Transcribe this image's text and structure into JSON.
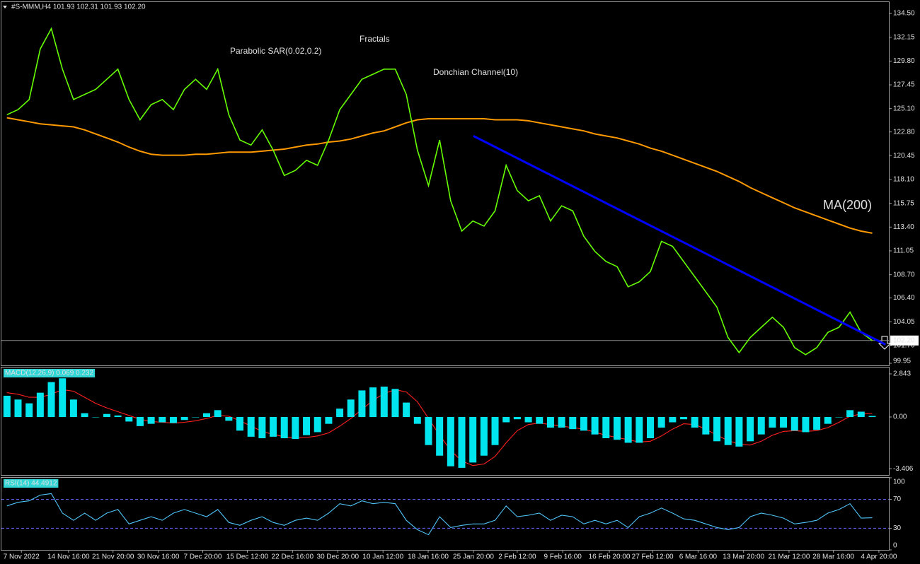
{
  "chart_data": [
    {
      "type": "line",
      "title": "#S-MMM,H4 101.93 102.31 101.93 102.20",
      "series": [
        {
          "color": "#66ff00",
          "values": [
            124.5,
            125,
            126,
            131,
            133,
            129,
            126,
            126.5,
            127,
            128,
            129,
            126,
            124,
            125.5,
            126,
            125,
            127,
            128,
            127,
            129,
            124.5,
            122,
            121.5,
            123,
            121,
            118.5,
            119,
            120,
            119.5,
            122,
            125,
            126.5,
            128,
            128.5,
            129,
            129,
            126.5,
            121,
            117.5,
            122,
            116,
            113,
            114,
            113.5,
            115,
            119.5,
            117,
            116,
            116.5,
            114,
            115.5,
            115,
            112.5,
            111,
            110,
            109.5,
            107.5,
            108,
            109,
            112,
            111.5,
            110,
            108.5,
            107,
            105.5,
            102.5,
            101,
            102.5,
            103.5,
            104.5,
            103.5,
            101.5,
            100.8,
            101.5,
            103,
            103.5,
            105,
            103,
            102.2
          ]
        },
        {
          "name": "MA(200)",
          "color": "#ff9900",
          "values": [
            124.2,
            124.0,
            123.8,
            123.6,
            123.5,
            123.4,
            123.3,
            123.0,
            122.6,
            122.2,
            121.8,
            121.3,
            120.9,
            120.6,
            120.5,
            120.5,
            120.5,
            120.6,
            120.6,
            120.7,
            120.8,
            120.8,
            120.8,
            120.9,
            121.0,
            121.1,
            121.3,
            121.5,
            121.6,
            121.8,
            121.9,
            122.1,
            122.4,
            122.7,
            122.9,
            123.3,
            123.7,
            124.0,
            124.1,
            124.1,
            124.1,
            124.1,
            124.1,
            124.1,
            124.0,
            124.0,
            124.0,
            123.9,
            123.7,
            123.5,
            123.3,
            123.1,
            122.9,
            122.6,
            122.4,
            122.2,
            121.9,
            121.6,
            121.2,
            120.9,
            120.5,
            120.1,
            119.7,
            119.3,
            118.9,
            118.4,
            117.9,
            117.3,
            116.8,
            116.3,
            115.8,
            115.3,
            114.9,
            114.5,
            114.1,
            113.7,
            113.3,
            113.0,
            112.8
          ]
        }
      ],
      "trendline": {
        "color": "#0000ff",
        "x": [
          42.05,
          79.2
        ],
        "values": [
          122.4,
          101.8
        ]
      },
      "annotations": [
        "Parabolic SAR(0.02,0.2)",
        "Fractals",
        "Donchian Channel(10)"
      ],
      "last_price": {
        "value": 102.2,
        "label": "102.20"
      },
      "xlim": [
        -0.5,
        79.5
      ],
      "ylim": [
        99.74,
        135.62
      ],
      "yticks": [
        {
          "value": 134.5,
          "label": "134.50"
        },
        132.15,
        {
          "value": 129.8,
          "label": "129.80"
        },
        127.45,
        {
          "value": 125.1,
          "label": "125.10"
        },
        {
          "value": 122.8,
          "label": "122.80"
        },
        120.45,
        {
          "value": 118.1,
          "label": "118.10"
        },
        115.75,
        {
          "value": 113.4,
          "label": "113.40"
        },
        111.05,
        {
          "value": 108.7,
          "label": "108.70"
        },
        {
          "value": 106.4,
          "label": "106.40"
        },
        104.05,
        {
          "value": 101.7,
          "label": "101.70"
        },
        99.95
      ]
    },
    {
      "type": "bar",
      "title": "MACD(12,26,9) 0.069 0.232",
      "series": [
        {
          "type": "bar",
          "color": "#00e5ee",
          "values": [
            1.4,
            1.15,
            0.9,
            1.6,
            2.3,
            2.55,
            1.15,
            0.25,
            0,
            0.2,
            0.1,
            -0.3,
            -0.6,
            -0.45,
            -0.35,
            -0.4,
            -0.2,
            0,
            0.25,
            0.45,
            -0.25,
            -0.9,
            -1.3,
            -1.4,
            -1.3,
            -1.4,
            -1.45,
            -1.2,
            -1.0,
            -0.45,
            0.55,
            1.15,
            1.75,
            1.95,
            2.0,
            1.85,
            0.95,
            -0.45,
            -1.85,
            -2.55,
            -3.25,
            -3.35,
            -3.0,
            -2.55,
            -1.85,
            -0.35,
            -0.15,
            -0.35,
            -0.45,
            -0.7,
            -0.7,
            -0.8,
            -0.9,
            -1.15,
            -1.4,
            -1.5,
            -1.7,
            -1.7,
            -1.4,
            -0.7,
            -0.35,
            -0.15,
            -0.7,
            -1.15,
            -1.6,
            -1.85,
            -1.95,
            -1.6,
            -1.15,
            -0.7,
            -0.7,
            -0.9,
            -1.0,
            -0.85,
            -0.45,
            0,
            0.45,
            0.35,
            0.069
          ]
        },
        {
          "type": "line",
          "color": "#ff2020",
          "values": [
            1.6,
            1.5,
            1.3,
            1.3,
            1.5,
            1.8,
            1.7,
            1.3,
            0.9,
            0.6,
            0.35,
            0.1,
            -0.15,
            -0.3,
            -0.35,
            -0.4,
            -0.35,
            -0.25,
            -0.1,
            0.1,
            0.05,
            -0.25,
            -0.6,
            -0.95,
            -1.15,
            -1.3,
            -1.4,
            -1.35,
            -1.25,
            -1.05,
            -0.6,
            -0.1,
            0.5,
            1.1,
            1.55,
            1.8,
            1.65,
            1.0,
            -0.1,
            -1.2,
            -2.2,
            -2.9,
            -3.2,
            -3.1,
            -2.6,
            -1.7,
            -0.9,
            -0.5,
            -0.4,
            -0.5,
            -0.6,
            -0.7,
            -0.8,
            -1.0,
            -1.2,
            -1.35,
            -1.5,
            -1.65,
            -1.6,
            -1.25,
            -0.8,
            -0.45,
            -0.5,
            -0.8,
            -1.2,
            -1.55,
            -1.8,
            -1.85,
            -1.6,
            -1.2,
            -0.95,
            -0.9,
            -0.95,
            -0.9,
            -0.7,
            -0.35,
            0.05,
            0.2,
            0.232
          ]
        }
      ],
      "xlim": [
        -0.5,
        79.5
      ],
      "ylim": [
        -3.82,
        3.26
      ],
      "yticks": [
        2.843,
        {
          "value": 0,
          "label": "0.00"
        },
        -3.406
      ]
    },
    {
      "type": "line",
      "title": "RSI(14) 44.4912",
      "series": [
        {
          "color": "#4fc3f7",
          "values": [
            61,
            66,
            68,
            76,
            78,
            51,
            41,
            51,
            41,
            51,
            56,
            36,
            41,
            46,
            41,
            51,
            56,
            51,
            46,
            56,
            38,
            34,
            41,
            46,
            38,
            34,
            41,
            44,
            41,
            51,
            64,
            61,
            68,
            64,
            66,
            64,
            41,
            28,
            21,
            46,
            31,
            34,
            36,
            36,
            41,
            61,
            46,
            48,
            51,
            41,
            48,
            46,
            36,
            41,
            36,
            41,
            31,
            46,
            51,
            58,
            51,
            43,
            41,
            36,
            31,
            28,
            31,
            46,
            51,
            48,
            44,
            36,
            38,
            41,
            51,
            56,
            64,
            44,
            44.4912
          ]
        }
      ],
      "levels": [
        70,
        30
      ],
      "xlim": [
        -0.5,
        79.5
      ],
      "ylim": [
        0,
        100
      ],
      "yticks": [
        100,
        70,
        30,
        0
      ],
      "xticks": [
        {
          "value": 1.3,
          "label": "7 Nov 2022"
        },
        {
          "value": 5.55,
          "label": "14 Nov 16:00"
        },
        {
          "value": 9.56,
          "label": "21 Nov 20:00"
        },
        {
          "value": 13.64,
          "label": "30 Nov 16:00"
        },
        {
          "value": 17.65,
          "label": "7 Dec 20:00"
        },
        {
          "value": 21.67,
          "label": "15 Dec 12:00"
        },
        {
          "value": 25.74,
          "label": "22 Dec 16:00"
        },
        {
          "value": 29.82,
          "label": "30 Dec 20:00"
        },
        {
          "value": 33.9,
          "label": "10 Jan 12:00"
        },
        {
          "value": 37.97,
          "label": "18 Jan 16:00"
        },
        {
          "value": 42.05,
          "label": "25 Jan 20:00"
        },
        {
          "value": 46,
          "label": "2 Feb 12:00"
        },
        {
          "value": 50.1,
          "label": "9 Feb 16:00"
        },
        {
          "value": 54.3,
          "label": "16 Feb 20:00"
        },
        {
          "value": 58.2,
          "label": "27 Feb 12:00"
        },
        {
          "value": 62.3,
          "label": "6 Mar 16:00"
        },
        {
          "value": 66.4,
          "label": "13 Mar 20:00"
        },
        {
          "value": 70.5,
          "label": "21 Mar 12:00"
        },
        {
          "value": 74.5,
          "label": "28 Mar 16:00"
        },
        {
          "value": 78.6,
          "label": "4 Apr 20:00"
        }
      ]
    }
  ]
}
